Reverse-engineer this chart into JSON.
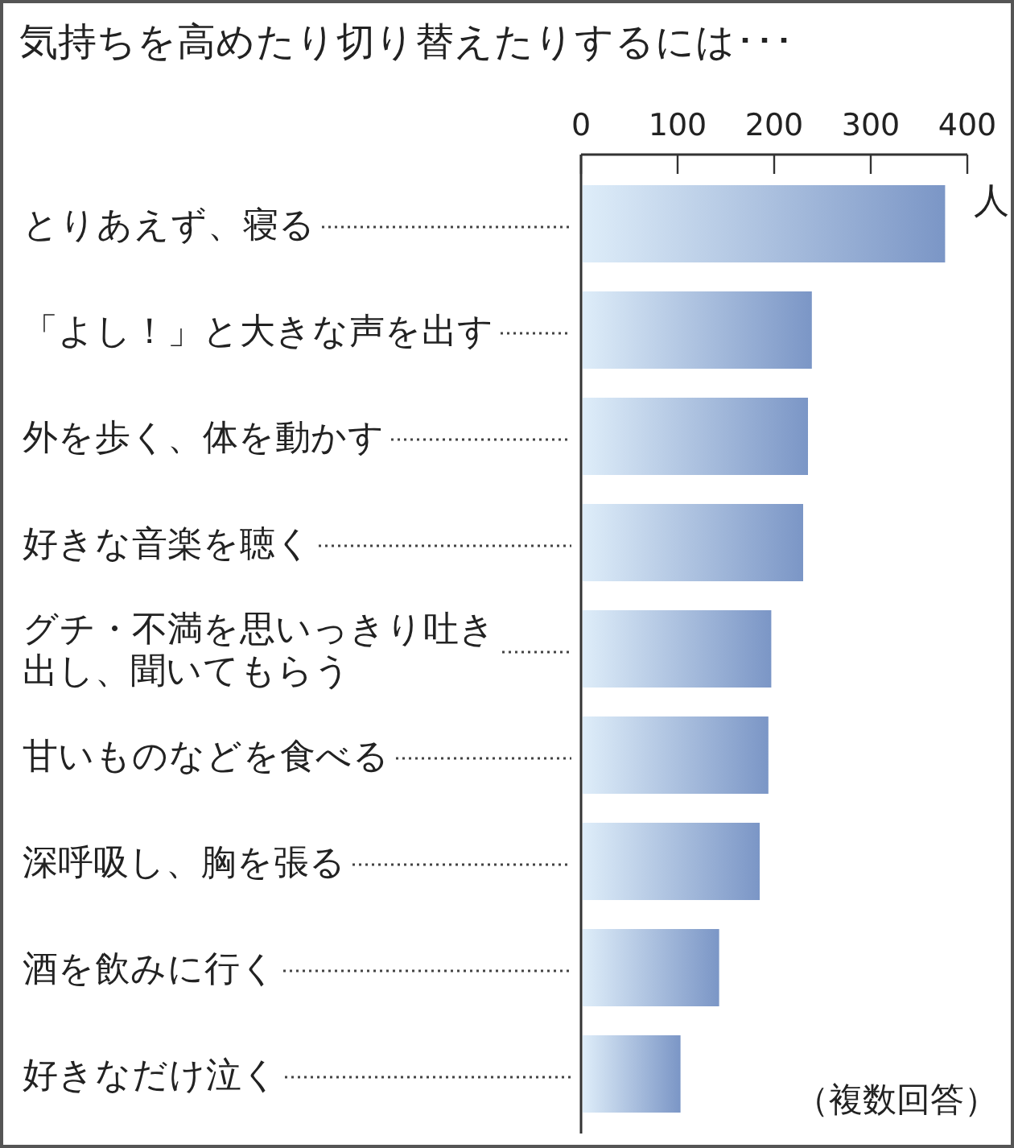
{
  "chart_data": {
    "type": "bar",
    "orientation": "horizontal",
    "title": "気持ちを高めたり切り替えたりするには･･･",
    "xlabel": "人",
    "categories": [
      "とりあえず、寝る",
      "「よし！」と大きな声を出す",
      "外を歩く、体を動かす",
      "好きな音楽を聴く",
      "グチ・不満を思いっきり吐き出し、聞いてもらう",
      "甘いものなどを食べる",
      "深呼吸し、胸を張る",
      "酒を飲みに行く",
      "好きなだけ泣く"
    ],
    "values": [
      377,
      239,
      235,
      230,
      197,
      194,
      185,
      143,
      103
    ],
    "color": "#7b96c6",
    "xlim": [
      0,
      400
    ],
    "xticks": [
      0,
      100,
      200,
      300,
      400
    ],
    "annotations": [
      "（複数回答）"
    ]
  }
}
